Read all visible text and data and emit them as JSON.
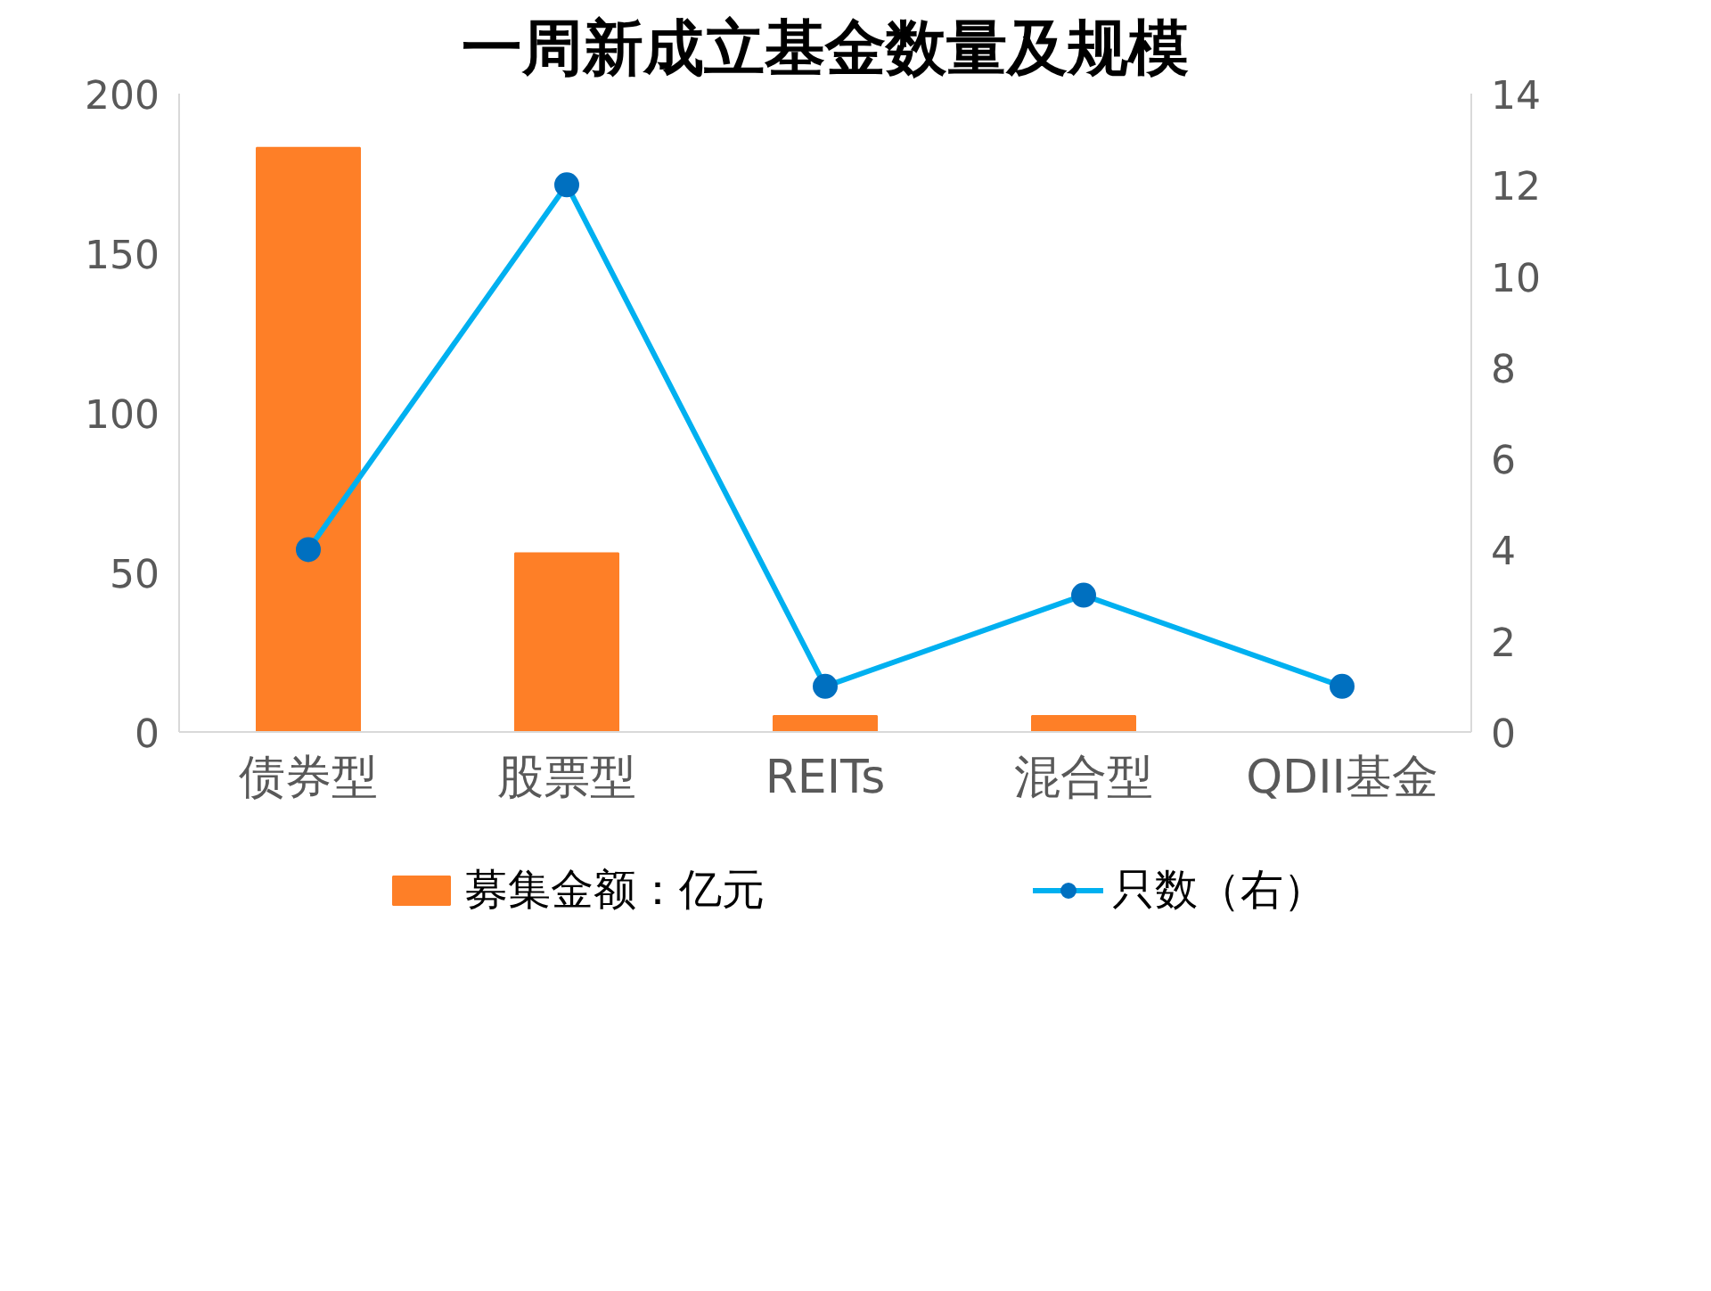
{
  "chart_data": {
    "type": "bar",
    "title": "一周新成立基金数量及规模",
    "categories": [
      "债券型",
      "股票型",
      "REITs",
      "混合型",
      "QDII基金"
    ],
    "series": [
      {
        "name": "募集金额：亿元",
        "type": "bar",
        "color": "#fe7f27",
        "values": [
          183,
          56,
          5,
          5,
          0
        ]
      },
      {
        "name": "只数（右）",
        "type": "line",
        "axis": "y2",
        "color": "#00b0f0",
        "values": [
          4,
          12,
          1,
          3,
          1
        ]
      }
    ],
    "ylim": [
      0,
      200
    ],
    "yticks": [
      0,
      50,
      100,
      150,
      200
    ],
    "y2lim": [
      0,
      14
    ],
    "y2ticks": [
      0,
      2,
      4,
      6,
      8,
      10,
      12,
      14
    ],
    "marker": "circle",
    "legend": "bottom",
    "grid": false
  }
}
